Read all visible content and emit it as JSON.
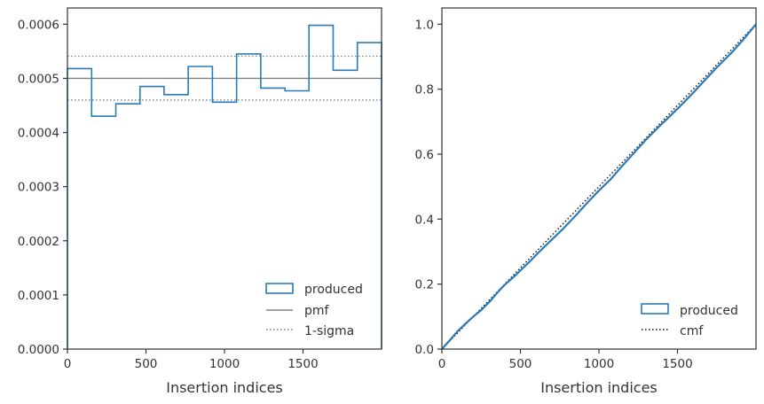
{
  "chart_data": [
    {
      "type": "histogram-step",
      "xlabel": "Insertion indices",
      "ylabel": "",
      "xlim": [
        0,
        2000
      ],
      "ylim": [
        0,
        0.00063
      ],
      "xticks": [
        0,
        500,
        1000,
        1500
      ],
      "xtick_labels": [
        "0",
        "500",
        "1000",
        "1500"
      ],
      "yticks": [
        0,
        0.0001,
        0.0002,
        0.0003,
        0.0004,
        0.0005,
        0.0006
      ],
      "ytick_labels": [
        "0.0000",
        "0.0001",
        "0.0002",
        "0.0003",
        "0.0004",
        "0.0005",
        "0.0006"
      ],
      "bin_edges": [
        0,
        154,
        308,
        462,
        615,
        769,
        923,
        1077,
        1231,
        1385,
        1538,
        1692,
        1846,
        2000
      ],
      "values": [
        0.000518,
        0.00043,
        0.000453,
        0.000485,
        0.00047,
        0.000522,
        0.000456,
        0.000545,
        0.000482,
        0.000477,
        0.000598,
        0.000515,
        0.000566
      ],
      "pmf": 0.0005,
      "sigma_upper": 0.000541,
      "sigma_lower": 0.00046,
      "legend_position": "lower-right",
      "legend": [
        {
          "label": "produced",
          "style": "box",
          "color": "#2b7bb9"
        },
        {
          "label": "pmf",
          "style": "solid",
          "color": "#808080"
        },
        {
          "label": "1-sigma",
          "style": "dotted",
          "color": "#808080"
        }
      ]
    },
    {
      "type": "line",
      "xlabel": "Insertion indices",
      "ylabel": "",
      "xlim": [
        0,
        2000
      ],
      "ylim": [
        0,
        1.05
      ],
      "xticks": [
        0,
        500,
        1000,
        1500
      ],
      "xtick_labels": [
        "0",
        "500",
        "1000",
        "1500"
      ],
      "yticks": [
        0,
        0.2,
        0.4,
        0.6,
        0.8,
        1.0
      ],
      "ytick_labels": [
        "0.0",
        "0.2",
        "0.4",
        "0.6",
        "0.8",
        "1.0"
      ],
      "produced_x": [
        0,
        50,
        100,
        154,
        200,
        250,
        308,
        350,
        400,
        462,
        500,
        550,
        615,
        700,
        769,
        850,
        923,
        1000,
        1077,
        1150,
        1231,
        1300,
        1385,
        1450,
        1538,
        1600,
        1692,
        1750,
        1846,
        1920,
        2000
      ],
      "produced_y": [
        0,
        0.027,
        0.055,
        0.08,
        0.1,
        0.12,
        0.148,
        0.172,
        0.198,
        0.224,
        0.242,
        0.265,
        0.297,
        0.337,
        0.369,
        0.41,
        0.449,
        0.488,
        0.524,
        0.565,
        0.608,
        0.645,
        0.686,
        0.716,
        0.758,
        0.789,
        0.837,
        0.867,
        0.913,
        0.953,
        1.0
      ],
      "cmf_x": [
        0,
        2000
      ],
      "cmf_y": [
        0,
        1.0
      ],
      "legend_position": "lower-right",
      "legend": [
        {
          "label": "produced",
          "style": "box",
          "color": "#2b7bb9"
        },
        {
          "label": "cmf",
          "style": "dotted",
          "color": "#111111"
        }
      ]
    }
  ]
}
